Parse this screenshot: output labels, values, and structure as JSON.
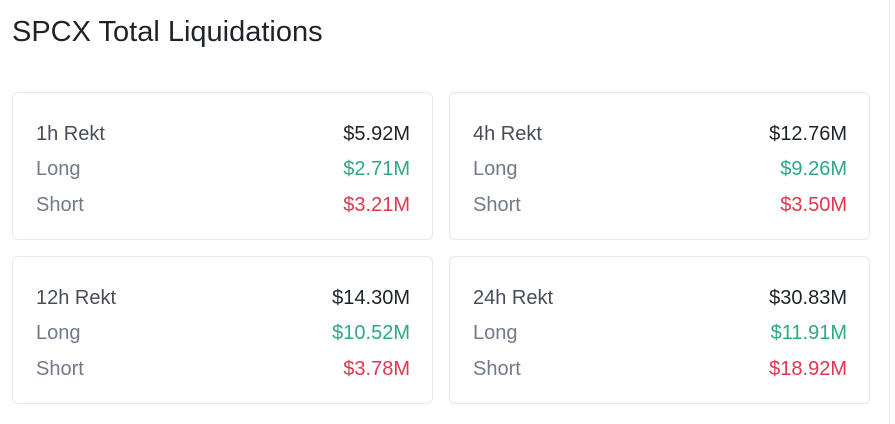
{
  "header": {
    "title": "SPCX Total Liquidations"
  },
  "cards": [
    {
      "title": "1h Rekt",
      "total": "$5.92M",
      "long_label": "Long",
      "long_value": "$2.71M",
      "short_label": "Short",
      "short_value": "$3.21M"
    },
    {
      "title": "4h Rekt",
      "total": "$12.76M",
      "long_label": "Long",
      "long_value": "$9.26M",
      "short_label": "Short",
      "short_value": "$3.50M"
    },
    {
      "title": "12h Rekt",
      "total": "$14.30M",
      "long_label": "Long",
      "long_value": "$10.52M",
      "short_label": "Short",
      "short_value": "$3.78M"
    },
    {
      "title": "24h Rekt",
      "total": "$30.83M",
      "long_label": "Long",
      "long_value": "$11.91M",
      "short_label": "Short",
      "short_value": "$18.92M"
    }
  ]
}
